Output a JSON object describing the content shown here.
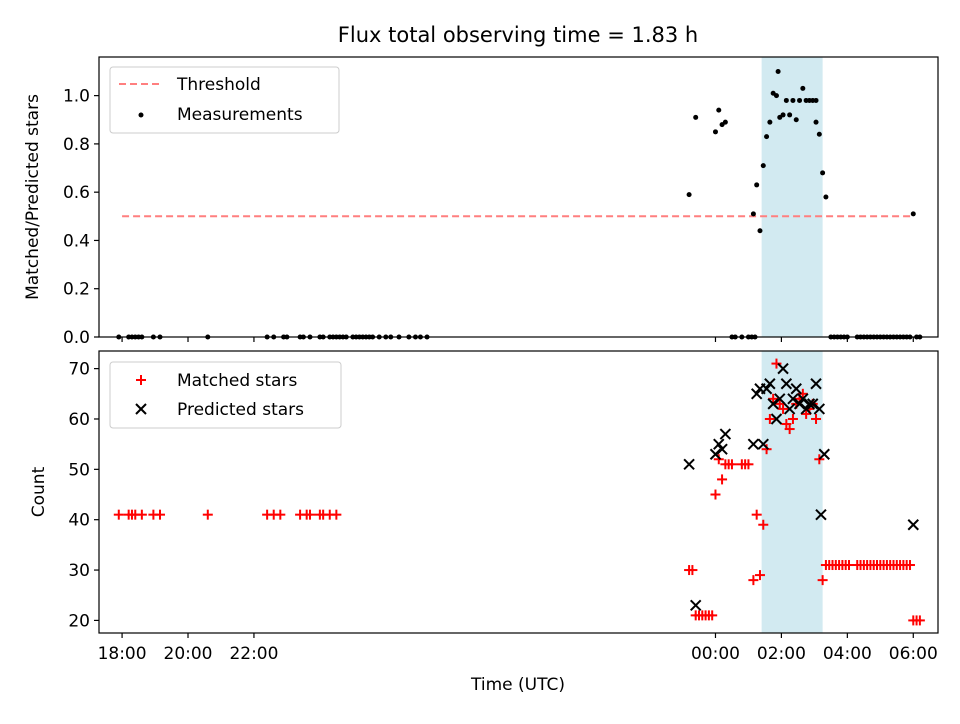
{
  "title": "Flux total observing time = 1.83 h",
  "colors": {
    "threshold": "#ff7f7f",
    "measurements": "#000000",
    "matched": "#ff0000",
    "predicted": "#000000",
    "span": "#add8e6"
  },
  "chart_data": [
    {
      "type": "scatter",
      "ylabel": "Matched/Predicted stars",
      "ylim": [
        0,
        1.16
      ],
      "xlim": [
        -18.7,
        6.75
      ],
      "ytick_values": [
        0.0,
        0.2,
        0.4,
        0.6,
        0.8,
        1.0
      ],
      "ytick_labels": [
        "0.0",
        "0.2",
        "0.4",
        "0.6",
        "0.8",
        "1.0"
      ],
      "grid": false,
      "legend": "top-left",
      "legend_entries": [
        "Threshold",
        "Measurements"
      ],
      "highlight_span": [
        1.4,
        3.25
      ],
      "threshold": {
        "name": "Threshold",
        "y": 0.5,
        "x_range": [
          -18.0,
          6.0
        ]
      },
      "series": [
        {
          "name": "Measurements",
          "points": [
            [
              -18.1,
              0
            ],
            [
              -17.8,
              0
            ],
            [
              -17.7,
              0
            ],
            [
              -17.6,
              0
            ],
            [
              -17.5,
              0
            ],
            [
              -17.4,
              0
            ],
            [
              -17.05,
              0
            ],
            [
              -16.85,
              0
            ],
            [
              -15.4,
              0
            ],
            [
              -13.6,
              0
            ],
            [
              -13.4,
              0
            ],
            [
              -13.1,
              0
            ],
            [
              -13.0,
              0
            ],
            [
              -12.6,
              0
            ],
            [
              -12.5,
              0
            ],
            [
              -12.3,
              0
            ],
            [
              -12.0,
              0
            ],
            [
              -11.9,
              0
            ],
            [
              -11.7,
              0
            ],
            [
              -11.6,
              0
            ],
            [
              -11.5,
              0
            ],
            [
              -11.4,
              0
            ],
            [
              -11.3,
              0
            ],
            [
              -11.2,
              0
            ],
            [
              -11.0,
              0
            ],
            [
              -10.9,
              0
            ],
            [
              -10.8,
              0
            ],
            [
              -10.7,
              0
            ],
            [
              -10.6,
              0
            ],
            [
              -10.5,
              0
            ],
            [
              -10.4,
              0
            ],
            [
              -10.2,
              0
            ],
            [
              -10.0,
              0
            ],
            [
              -9.85,
              0
            ],
            [
              -9.6,
              0
            ],
            [
              -9.3,
              0
            ],
            [
              -9.1,
              0
            ],
            [
              -8.95,
              0
            ],
            [
              -8.75,
              0
            ],
            [
              -0.8,
              0.59
            ],
            [
              -0.6,
              0.91
            ],
            [
              0.0,
              0.85
            ],
            [
              0.1,
              0.94
            ],
            [
              0.2,
              0.88
            ],
            [
              0.3,
              0.89
            ],
            [
              0.5,
              0
            ],
            [
              0.6,
              0
            ],
            [
              0.8,
              0
            ],
            [
              1.0,
              0
            ],
            [
              1.1,
              0
            ],
            [
              1.2,
              0
            ],
            [
              1.15,
              0.51
            ],
            [
              1.25,
              0.63
            ],
            [
              1.35,
              0.44
            ],
            [
              1.45,
              0.71
            ],
            [
              1.55,
              0.83
            ],
            [
              1.65,
              0.89
            ],
            [
              1.75,
              1.01
            ],
            [
              1.85,
              1.0
            ],
            [
              1.95,
              0.91
            ],
            [
              2.05,
              0.92
            ],
            [
              2.15,
              0.98
            ],
            [
              2.25,
              0.92
            ],
            [
              2.35,
              0.98
            ],
            [
              2.45,
              0.9
            ],
            [
              2.55,
              0.98
            ],
            [
              2.65,
              1.03
            ],
            [
              2.75,
              0.98
            ],
            [
              2.85,
              0.98
            ],
            [
              2.95,
              0.98
            ],
            [
              3.05,
              0.98
            ],
            [
              3.15,
              0.84
            ],
            [
              3.25,
              0.68
            ],
            [
              3.35,
              0.58
            ],
            [
              1.9,
              1.1
            ],
            [
              3.05,
              0.89
            ],
            [
              3.5,
              0
            ],
            [
              3.6,
              0
            ],
            [
              3.7,
              0
            ],
            [
              3.8,
              0
            ],
            [
              3.9,
              0
            ],
            [
              4.0,
              0
            ],
            [
              4.3,
              0
            ],
            [
              4.4,
              0
            ],
            [
              4.5,
              0
            ],
            [
              4.6,
              0
            ],
            [
              4.7,
              0
            ],
            [
              4.8,
              0
            ],
            [
              4.9,
              0
            ],
            [
              5.0,
              0
            ],
            [
              5.1,
              0
            ],
            [
              5.2,
              0
            ],
            [
              5.3,
              0
            ],
            [
              5.4,
              0
            ],
            [
              5.5,
              0
            ],
            [
              5.6,
              0
            ],
            [
              5.7,
              0
            ],
            [
              5.8,
              0
            ],
            [
              5.9,
              0
            ],
            [
              6.0,
              0.51
            ],
            [
              6.1,
              0
            ],
            [
              6.2,
              0
            ]
          ]
        }
      ]
    },
    {
      "type": "scatter",
      "xlabel": "Time (UTC)",
      "ylabel": "Count",
      "ylim": [
        17.5,
        73.5
      ],
      "xlim": [
        -18.7,
        6.75
      ],
      "ytick_values": [
        20,
        30,
        40,
        50,
        60,
        70
      ],
      "ytick_labels": [
        "20",
        "30",
        "40",
        "50",
        "60",
        "70"
      ],
      "xtick_values": [
        -18,
        -16,
        -14,
        0,
        2,
        4,
        6
      ],
      "xtick_labels": [
        "18:00",
        "20:00",
        "22:00",
        "00:00",
        "02:00",
        "04:00",
        "06:00"
      ],
      "grid": false,
      "legend": "top-left",
      "legend_entries": [
        "Matched stars",
        "Predicted stars"
      ],
      "highlight_span": [
        1.4,
        3.25
      ],
      "series": [
        {
          "name": "Matched stars",
          "marker": "+",
          "points": [
            [
              -18.1,
              41
            ],
            [
              -17.8,
              41
            ],
            [
              -17.7,
              41
            ],
            [
              -17.6,
              41
            ],
            [
              -17.4,
              41
            ],
            [
              -17.05,
              41
            ],
            [
              -16.85,
              41
            ],
            [
              -15.4,
              41
            ],
            [
              -13.6,
              41
            ],
            [
              -13.4,
              41
            ],
            [
              -13.2,
              41
            ],
            [
              -12.6,
              41
            ],
            [
              -12.4,
              41
            ],
            [
              -12.3,
              41
            ],
            [
              -12.0,
              41
            ],
            [
              -11.9,
              41
            ],
            [
              -11.7,
              41
            ],
            [
              -11.5,
              41
            ],
            [
              -0.8,
              30
            ],
            [
              -0.7,
              30
            ],
            [
              -0.6,
              21
            ],
            [
              -0.5,
              21
            ],
            [
              -0.4,
              21
            ],
            [
              -0.3,
              21
            ],
            [
              -0.2,
              21
            ],
            [
              -0.1,
              21
            ],
            [
              0.0,
              45
            ],
            [
              0.1,
              52
            ],
            [
              0.2,
              48
            ],
            [
              0.3,
              51
            ],
            [
              0.4,
              51
            ],
            [
              0.5,
              51
            ],
            [
              0.8,
              51
            ],
            [
              0.9,
              51
            ],
            [
              1.0,
              51
            ],
            [
              1.15,
              28
            ],
            [
              1.25,
              41
            ],
            [
              1.35,
              29
            ],
            [
              1.45,
              39
            ],
            [
              1.55,
              54
            ],
            [
              1.65,
              60
            ],
            [
              1.75,
              64
            ],
            [
              1.85,
              71
            ],
            [
              1.95,
              63
            ],
            [
              2.05,
              62
            ],
            [
              2.15,
              59
            ],
            [
              2.25,
              58
            ],
            [
              2.35,
              60
            ],
            [
              2.45,
              63
            ],
            [
              2.55,
              64
            ],
            [
              2.65,
              65
            ],
            [
              2.75,
              61
            ],
            [
              2.85,
              62
            ],
            [
              2.95,
              63
            ],
            [
              3.05,
              60
            ],
            [
              3.15,
              52
            ],
            [
              3.25,
              28
            ],
            [
              3.35,
              31
            ],
            [
              3.45,
              31
            ],
            [
              3.55,
              31
            ],
            [
              3.65,
              31
            ],
            [
              3.75,
              31
            ],
            [
              3.85,
              31
            ],
            [
              3.95,
              31
            ],
            [
              4.05,
              31
            ],
            [
              4.3,
              31
            ],
            [
              4.4,
              31
            ],
            [
              4.5,
              31
            ],
            [
              4.6,
              31
            ],
            [
              4.7,
              31
            ],
            [
              4.8,
              31
            ],
            [
              4.9,
              31
            ],
            [
              5.0,
              31
            ],
            [
              5.1,
              31
            ],
            [
              5.2,
              31
            ],
            [
              5.3,
              31
            ],
            [
              5.4,
              31
            ],
            [
              5.5,
              31
            ],
            [
              5.6,
              31
            ],
            [
              5.7,
              31
            ],
            [
              5.8,
              31
            ],
            [
              5.9,
              31
            ],
            [
              6.0,
              20
            ],
            [
              6.1,
              20
            ],
            [
              6.2,
              20
            ]
          ]
        },
        {
          "name": "Predicted stars",
          "marker": "x",
          "points": [
            [
              -0.8,
              51
            ],
            [
              -0.6,
              23
            ],
            [
              0.0,
              53
            ],
            [
              0.1,
              55
            ],
            [
              0.2,
              54
            ],
            [
              0.3,
              57
            ],
            [
              1.15,
              55
            ],
            [
              1.25,
              65
            ],
            [
              1.35,
              66
            ],
            [
              1.45,
              55
            ],
            [
              1.55,
              66
            ],
            [
              1.65,
              67
            ],
            [
              1.75,
              63
            ],
            [
              1.85,
              60
            ],
            [
              1.95,
              64
            ],
            [
              2.05,
              70
            ],
            [
              2.15,
              67
            ],
            [
              2.25,
              62
            ],
            [
              2.35,
              64
            ],
            [
              2.45,
              66
            ],
            [
              2.55,
              63
            ],
            [
              2.65,
              64
            ],
            [
              2.75,
              62
            ],
            [
              2.85,
              63
            ],
            [
              2.95,
              63
            ],
            [
              3.05,
              67
            ],
            [
              3.15,
              62
            ],
            [
              3.2,
              41
            ],
            [
              3.3,
              53
            ],
            [
              6.0,
              39
            ]
          ]
        }
      ]
    }
  ]
}
